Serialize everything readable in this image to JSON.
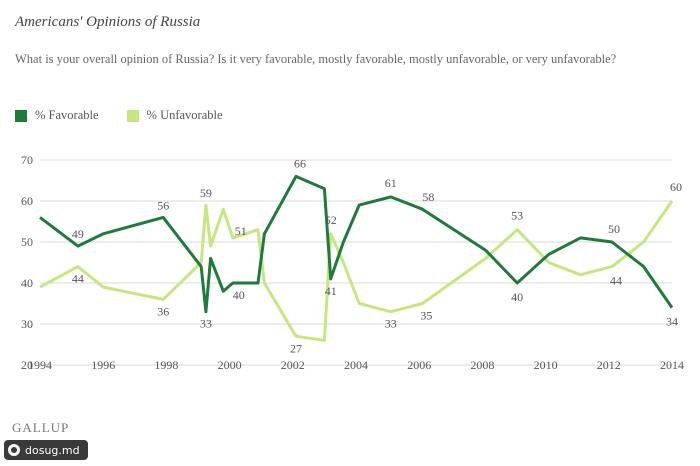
{
  "header": {
    "title": "Americans' Opinions of Russia",
    "question": "What is your overall opinion of Russia? Is it very favorable, mostly favorable, mostly unfavorable, or very unfavorable?"
  },
  "brand": "GALLUP",
  "watermark": "dosug.md",
  "colors": {
    "favorable": "#1e7b3a",
    "unfavorable": "#c6e77f",
    "grid": "#d8d8d8",
    "text": "#555555"
  },
  "chart_data": {
    "type": "line",
    "xlim": [
      1994,
      2014
    ],
    "ylim": [
      20,
      70
    ],
    "x_ticks": [
      1994,
      1996,
      1998,
      2000,
      2002,
      2004,
      2006,
      2008,
      2010,
      2012,
      2014
    ],
    "y_ticks": [
      20,
      30,
      40,
      50,
      60,
      70
    ],
    "grid": true,
    "legend_position": "top-left",
    "series": [
      {
        "name": "% Favorable",
        "points": [
          [
            1994.0,
            56
          ],
          [
            1995.2,
            49
          ],
          [
            1996.0,
            52
          ],
          [
            1997.9,
            56
          ],
          [
            1999.1,
            44
          ],
          [
            1999.25,
            33
          ],
          [
            1999.4,
            46
          ],
          [
            1999.8,
            38
          ],
          [
            2000.1,
            40
          ],
          [
            2000.9,
            40
          ],
          [
            2001.1,
            52
          ],
          [
            2002.1,
            66
          ],
          [
            2003.0,
            63
          ],
          [
            2003.2,
            41
          ],
          [
            2003.6,
            50
          ],
          [
            2004.1,
            59
          ],
          [
            2005.1,
            61
          ],
          [
            2006.1,
            58
          ],
          [
            2008.1,
            48
          ],
          [
            2009.1,
            40
          ],
          [
            2010.1,
            47
          ],
          [
            2011.1,
            51
          ],
          [
            2012.1,
            50
          ],
          [
            2013.1,
            44
          ],
          [
            2014.0,
            34
          ]
        ],
        "labels": [
          {
            "x": 1995.2,
            "y": 49,
            "text": "49"
          },
          {
            "x": 1997.9,
            "y": 56,
            "text": "56"
          },
          {
            "x": 1999.25,
            "y": 33,
            "text": "33"
          },
          {
            "x": 2000.1,
            "y": 40,
            "text": "40"
          },
          {
            "x": 2002.1,
            "y": 66,
            "text": "66"
          },
          {
            "x": 2003.2,
            "y": 41,
            "text": "41"
          },
          {
            "x": 2005.1,
            "y": 61,
            "text": "61"
          },
          {
            "x": 2006.1,
            "y": 58,
            "text": "58"
          },
          {
            "x": 2009.1,
            "y": 40,
            "text": "40"
          },
          {
            "x": 2012.1,
            "y": 50,
            "text": "50"
          },
          {
            "x": 2014.0,
            "y": 34,
            "text": "34"
          }
        ]
      },
      {
        "name": "% Unfavorable",
        "points": [
          [
            1994.0,
            39
          ],
          [
            1995.2,
            44
          ],
          [
            1996.0,
            39
          ],
          [
            1997.9,
            36
          ],
          [
            1999.1,
            45
          ],
          [
            1999.25,
            59
          ],
          [
            1999.4,
            49
          ],
          [
            1999.8,
            58
          ],
          [
            2000.1,
            51
          ],
          [
            2000.9,
            53
          ],
          [
            2001.1,
            40
          ],
          [
            2002.1,
            27
          ],
          [
            2003.0,
            26
          ],
          [
            2003.2,
            52
          ],
          [
            2003.6,
            45
          ],
          [
            2004.1,
            35
          ],
          [
            2005.1,
            33
          ],
          [
            2006.1,
            35
          ],
          [
            2008.1,
            46
          ],
          [
            2009.1,
            53
          ],
          [
            2010.1,
            45
          ],
          [
            2011.1,
            42
          ],
          [
            2012.1,
            44
          ],
          [
            2013.1,
            50
          ],
          [
            2014.0,
            60
          ]
        ],
        "labels": [
          {
            "x": 1995.2,
            "y": 44,
            "text": "44"
          },
          {
            "x": 1997.9,
            "y": 36,
            "text": "36"
          },
          {
            "x": 1999.25,
            "y": 59,
            "text": "59"
          },
          {
            "x": 2000.1,
            "y": 51,
            "text": "51"
          },
          {
            "x": 2002.1,
            "y": 27,
            "text": "27"
          },
          {
            "x": 2003.2,
            "y": 52,
            "text": "52"
          },
          {
            "x": 2005.1,
            "y": 33,
            "text": "33"
          },
          {
            "x": 2006.1,
            "y": 35,
            "text": "35"
          },
          {
            "x": 2009.1,
            "y": 53,
            "text": "53"
          },
          {
            "x": 2012.1,
            "y": 44,
            "text": "44"
          },
          {
            "x": 2014.0,
            "y": 60,
            "text": "60"
          }
        ]
      }
    ]
  }
}
